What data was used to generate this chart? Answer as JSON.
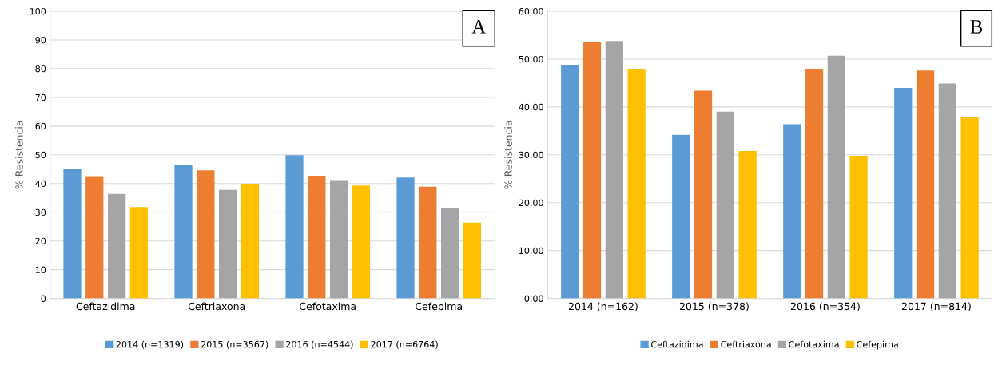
{
  "chart_data": [
    {
      "type": "bar",
      "ylabel": "% Resistencia",
      "annotations": [
        "A"
      ],
      "categories": [
        "Ceftazidima",
        "Ceftriaxona",
        "Cefotaxima",
        "Cefepima"
      ],
      "series": [
        {
          "name": "2014 (n=1319)",
          "color": "#5b9bd5",
          "values": [
            45.0,
            46.5,
            49.9,
            42.1
          ]
        },
        {
          "name": "2015 (n=3567)",
          "color": "#ed7d31",
          "values": [
            42.6,
            44.6,
            42.7,
            38.9
          ]
        },
        {
          "name": "2016 (n=4544)",
          "color": "#a5a5a5",
          "values": [
            36.4,
            37.8,
            41.2,
            31.6
          ]
        },
        {
          "name": "2017 (n=6764)",
          "color": "#ffc000",
          "values": [
            31.8,
            39.9,
            39.3,
            26.4
          ]
        }
      ],
      "ylim": [
        0,
        100
      ],
      "yticks": [
        0,
        10,
        20,
        30,
        40,
        50,
        60,
        70,
        80,
        90,
        100
      ],
      "grid": "y",
      "legend": "bottom"
    },
    {
      "type": "bar",
      "ylabel": "% Resistencia",
      "annotations": [
        "B"
      ],
      "categories": [
        "2014 (n=162)",
        "2015 (n=378)",
        "2016 (n=354)",
        "2017 (n=814)"
      ],
      "series": [
        {
          "name": "Ceftazidima",
          "color": "#5b9bd5",
          "values": [
            48.8,
            34.2,
            36.4,
            44.0
          ]
        },
        {
          "name": "Ceftriaxona",
          "color": "#ed7d31",
          "values": [
            53.5,
            43.4,
            47.9,
            47.6
          ]
        },
        {
          "name": "Cefotaxima",
          "color": "#a5a5a5",
          "values": [
            53.8,
            39.0,
            50.7,
            44.9
          ]
        },
        {
          "name": "Cefepima",
          "color": "#ffc000",
          "values": [
            47.9,
            30.8,
            29.8,
            37.9
          ]
        }
      ],
      "ylim": [
        0,
        60
      ],
      "yticks": [
        {
          "value": 0,
          "label": "0,00"
        },
        {
          "value": 10,
          "label": "10,00"
        },
        {
          "value": 20,
          "label": "20,00"
        },
        {
          "value": 30,
          "label": "30,00"
        },
        {
          "value": 40,
          "label": "40,00"
        },
        {
          "value": 50,
          "label": "50,00"
        },
        {
          "value": 60,
          "label": "60,00"
        }
      ],
      "grid": "y",
      "legend": "bottom"
    }
  ]
}
